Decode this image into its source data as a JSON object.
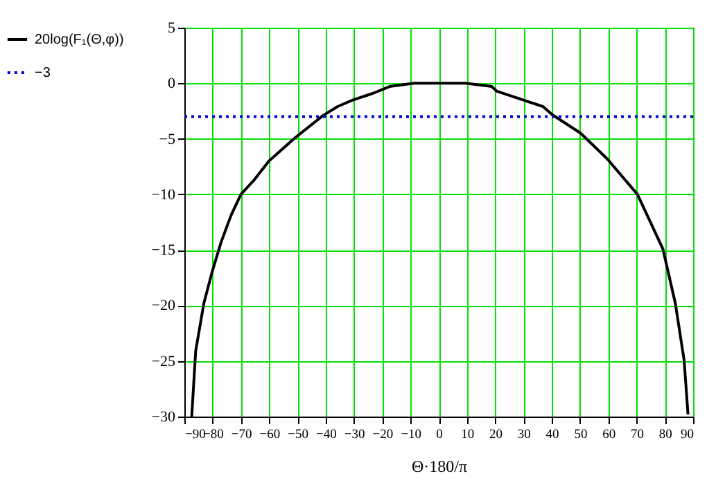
{
  "chart_data": {
    "type": "line",
    "xlabel": "Θ·180/π",
    "xlim": [
      -90,
      90
    ],
    "xticks": [
      -90,
      -80,
      -70,
      -60,
      -50,
      -40,
      -30,
      -20,
      -10,
      0,
      10,
      20,
      30,
      40,
      50,
      60,
      70,
      80,
      90
    ],
    "ylim": [
      -30,
      5
    ],
    "yticks": [
      -30,
      -25,
      -20,
      -15,
      -10,
      -5,
      0,
      5
    ],
    "grid": true,
    "legend": "left",
    "series": [
      {
        "name": "20log(F₁(Θ,φ))",
        "color": "#000000",
        "line_style": "solid",
        "x": [
          -87.4,
          -86,
          -83.1,
          -80.2,
          -77,
          -73.5,
          -70,
          -65.3,
          -60.1,
          -50.8,
          -40.9,
          -35.8,
          -30.3,
          -23.2,
          -17.4,
          -8.7,
          0,
          9.4,
          18.8,
          20.4,
          29.8,
          36.9,
          40,
          50.2,
          59.6,
          70.3,
          79.3,
          83.7,
          86.8,
          88.2
        ],
        "values": [
          -30,
          -24.1,
          -19.8,
          -17,
          -14.3,
          -11.9,
          -10,
          -8.7,
          -7,
          -4.9,
          -2.9,
          -2.1,
          -1.5,
          -0.9,
          -0.3,
          0,
          0,
          0,
          -0.3,
          -0.7,
          -1.5,
          -2.1,
          -2.8,
          -4.5,
          -6.8,
          -10,
          -14.9,
          -19.8,
          -24.9,
          -29.8
        ]
      },
      {
        "name": "−3",
        "color": "#0000cc",
        "line_style": "dotted",
        "x": [
          -90,
          90
        ],
        "values": [
          -3,
          -3
        ]
      }
    ]
  }
}
